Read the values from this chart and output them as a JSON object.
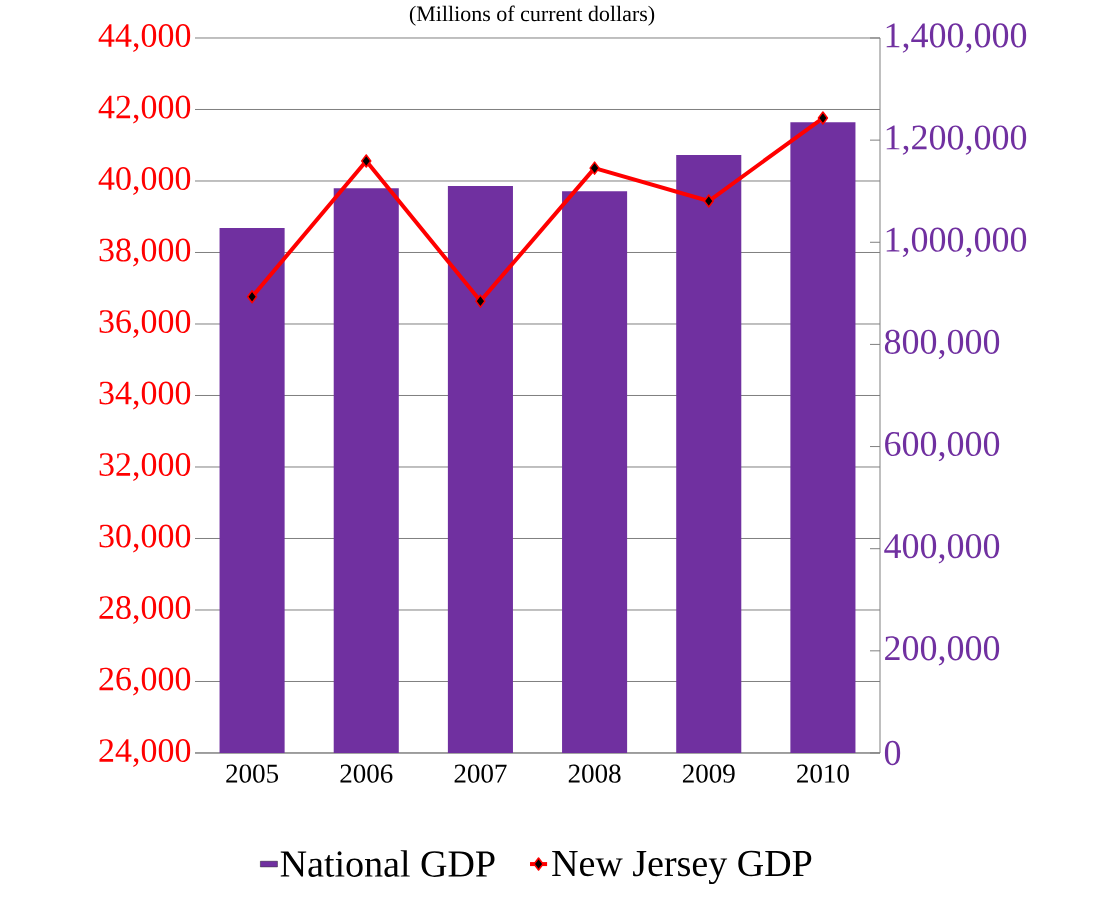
{
  "chart_data": {
    "type": "bar",
    "subtitle": "(Millions of current dollars)",
    "categories": [
      "2005",
      "2006",
      "2007",
      "2008",
      "2009",
      "2010"
    ],
    "series": [
      {
        "name": "National GDP",
        "type": "bar",
        "axis": "y2",
        "color": "#7030a0",
        "values": [
          1028000,
          1106000,
          1110000,
          1100000,
          1171000,
          1235000
        ]
      },
      {
        "name": "New Jersey GDP",
        "type": "line",
        "axis": "y",
        "color": "#ff0000",
        "marker": "diamond",
        "values": [
          36760,
          40560,
          36640,
          40360,
          39440,
          41760
        ]
      }
    ],
    "ylim": [
      24000,
      44000
    ],
    "yticks": [
      {
        "value": 24000,
        "label": "24,000"
      },
      {
        "value": 26000,
        "label": "26,000"
      },
      {
        "value": 28000,
        "label": "28,000"
      },
      {
        "value": 30000,
        "label": "30,000"
      },
      {
        "value": 32000,
        "label": "32,000"
      },
      {
        "value": 34000,
        "label": "34,000"
      },
      {
        "value": 36000,
        "label": "36,000"
      },
      {
        "value": 38000,
        "label": "38,000"
      },
      {
        "value": 40000,
        "label": "40,000"
      },
      {
        "value": 42000,
        "label": "42,000"
      },
      {
        "value": 44000,
        "label": "44,000"
      }
    ],
    "y2lim": [
      0,
      1400000
    ],
    "y2ticks": [
      0,
      {
        "value": 200000,
        "label": "200,000"
      },
      {
        "value": 400000,
        "label": "400,000"
      },
      {
        "value": 600000,
        "label": "600,000"
      },
      {
        "value": 800000,
        "label": "800,000"
      },
      {
        "value": 1000000,
        "label": "1,000,000"
      },
      {
        "value": 1200000,
        "label": "1,200,000"
      },
      {
        "value": 1400000,
        "label": "1,400,000"
      }
    ],
    "grid": "y",
    "legend": "bottom"
  }
}
